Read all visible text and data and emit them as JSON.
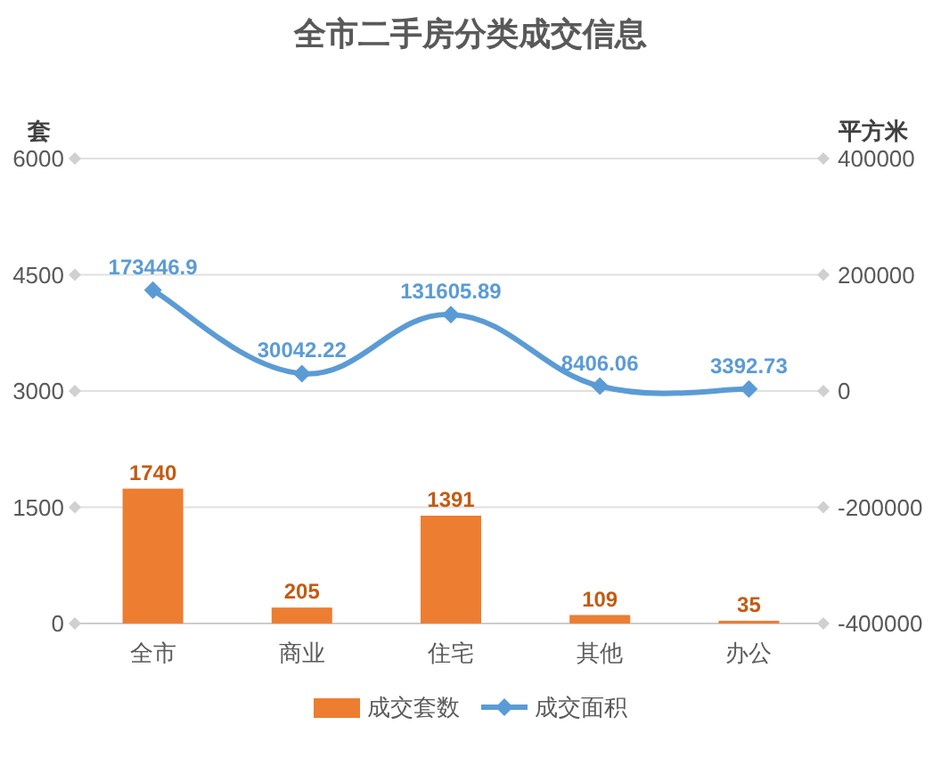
{
  "chart_data": {
    "type": "bar",
    "title": "全市二手房分类成交信息",
    "ylabel": "套",
    "y2label": "平方米",
    "categories": [
      "全市",
      "商业",
      "住宅",
      "其他",
      "办公"
    ],
    "series": [
      {
        "name": "成交套数",
        "color": "#ed7d31",
        "values": [
          1740,
          205,
          1391,
          109,
          35
        ]
      },
      {
        "name": "成交面积",
        "type": "line",
        "axis": "y2",
        "color": "#5b9bd5",
        "values": [
          173446.9,
          30042.22,
          131605.89,
          8406.06,
          3392.73
        ]
      }
    ],
    "ylim": [
      0,
      6000
    ],
    "yticks": [
      0,
      1500,
      3000,
      4500,
      6000
    ],
    "y2lim": [
      -400000,
      400000
    ],
    "y2ticks": [
      -400000,
      -200000,
      0,
      200000,
      400000
    ],
    "grid": "y",
    "legend": "bottom",
    "marker": "diamond",
    "data_labels": true
  }
}
